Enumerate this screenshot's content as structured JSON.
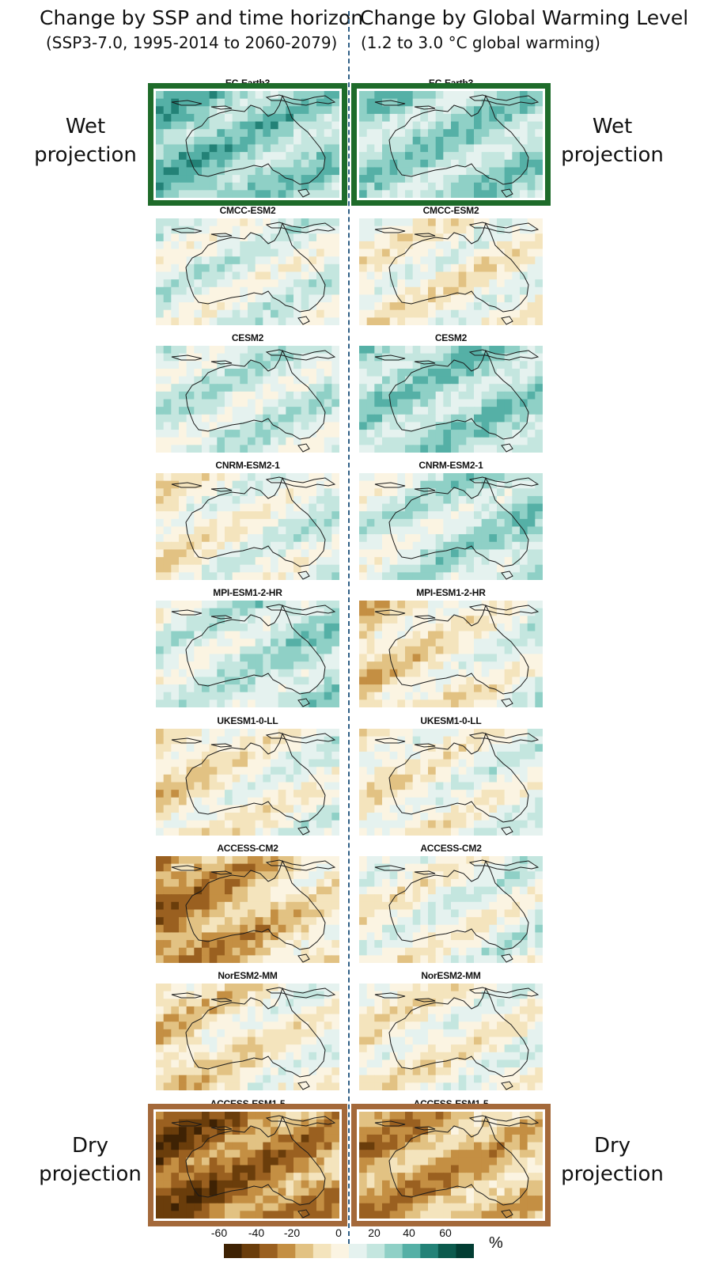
{
  "headers": {
    "left_title": "Change by SSP and time horizon",
    "left_subtitle": "(SSP3-7.0, 1995-2014 to 2060-2079)",
    "right_title": "Change by Global Warming Level",
    "right_subtitle": "(1.2 to 3.0 °C global warming)"
  },
  "side_labels": {
    "wet_line1": "Wet",
    "wet_line2": "projection",
    "dry_line1": "Dry",
    "dry_line2": "projection"
  },
  "models": [
    {
      "name": "EC-Earth3",
      "highlight": "wet",
      "ssp": [
        30,
        20
      ],
      "gwl": [
        20,
        20
      ]
    },
    {
      "name": "CMCC-ESM2",
      "highlight": "none",
      "ssp": [
        5,
        5
      ],
      "gwl": [
        -5,
        -5
      ]
    },
    {
      "name": "CESM2",
      "highlight": "none",
      "ssp": [
        10,
        10
      ],
      "gwl": [
        20,
        20
      ]
    },
    {
      "name": "CNRM-ESM2-1",
      "highlight": "none",
      "ssp": [
        -10,
        10
      ],
      "gwl": [
        5,
        20
      ]
    },
    {
      "name": "MPI-ESM1-2-HR",
      "highlight": "none",
      "ssp": [
        5,
        20
      ],
      "gwl": [
        -20,
        5
      ]
    },
    {
      "name": "UKESM1-0-LL",
      "highlight": "none",
      "ssp": [
        -15,
        5
      ],
      "gwl": [
        -10,
        5
      ]
    },
    {
      "name": "ACCESS-CM2",
      "highlight": "none",
      "ssp": [
        -40,
        -10
      ],
      "gwl": [
        -5,
        5
      ]
    },
    {
      "name": "NorESM2-MM",
      "highlight": "none",
      "ssp": [
        -20,
        0
      ],
      "gwl": [
        -10,
        0
      ]
    },
    {
      "name": "ACCESS-ESM1-5",
      "highlight": "dry",
      "ssp": [
        -50,
        -30
      ],
      "gwl": [
        -35,
        -20
      ]
    }
  ],
  "colorbar": {
    "ticks": [
      "-60",
      "-40",
      "-20",
      "0",
      "20",
      "40",
      "60"
    ],
    "unit": "%",
    "colors": [
      "#3e2204",
      "#6a3d0b",
      "#9a6020",
      "#c48f43",
      "#e2c283",
      "#f4e4bd",
      "#fbf4e2",
      "#e5f2ef",
      "#c4e6df",
      "#8fd0c6",
      "#55b0a6",
      "#238277",
      "#0b5a4d",
      "#023d33"
    ],
    "range": [
      -70,
      70
    ]
  },
  "colors": {
    "wet_frame": "#1e6b2a",
    "dry_frame": "#a4693a",
    "divider": "#2f5f86"
  }
}
